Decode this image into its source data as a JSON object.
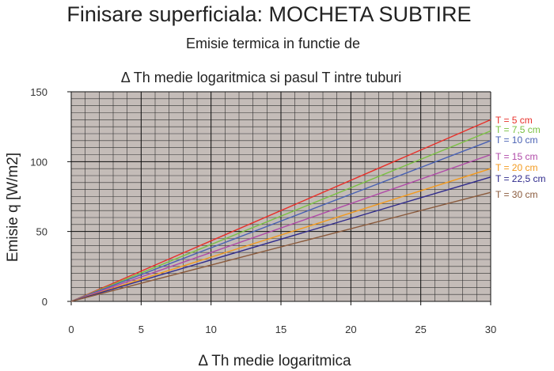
{
  "chart_data": {
    "type": "line",
    "title": "Finisare superficiala: MOCHETA SUBTIRE",
    "subtitle_line1": "Emisie termica in functie de",
    "subtitle_line2": "Δ Th medie logaritmica  si pasul T intre tuburi",
    "xlabel": "Δ Th medie logaritmica",
    "ylabel": "Emisie q [W/m2]",
    "xlim": [
      0,
      30
    ],
    "ylim": [
      0,
      150
    ],
    "x_ticks": [
      0,
      5,
      10,
      15,
      20,
      25,
      30
    ],
    "y_ticks": [
      0,
      50,
      100,
      150
    ],
    "grid": true,
    "grid_minor_x_step": 1,
    "grid_minor_y_step": 5,
    "background_color": "#c4bcb8",
    "legend_position": "right",
    "series": [
      {
        "name": "T = 5 cm",
        "color": "#e8302a",
        "x": [
          0,
          30
        ],
        "y": [
          0,
          130
        ]
      },
      {
        "name": "T = 7,5 cm",
        "color": "#7ac142",
        "x": [
          0,
          30
        ],
        "y": [
          0,
          122
        ]
      },
      {
        "name": "T = 10 cm",
        "color": "#4a62b4",
        "x": [
          0,
          30
        ],
        "y": [
          0,
          115
        ]
      },
      {
        "name": "T = 15 cm",
        "color": "#b04aa8",
        "x": [
          0,
          30
        ],
        "y": [
          0,
          105
        ]
      },
      {
        "name": "T = 20 cm",
        "color": "#f39a1e",
        "x": [
          0,
          30
        ],
        "y": [
          0,
          95
        ]
      },
      {
        "name": "T = 22,5 cm",
        "color": "#2f2a8c",
        "x": [
          0,
          30
        ],
        "y": [
          0,
          89
        ]
      },
      {
        "name": "T = 30 cm",
        "color": "#8a5a3c",
        "x": [
          0,
          30
        ],
        "y": [
          0,
          78
        ]
      }
    ]
  }
}
